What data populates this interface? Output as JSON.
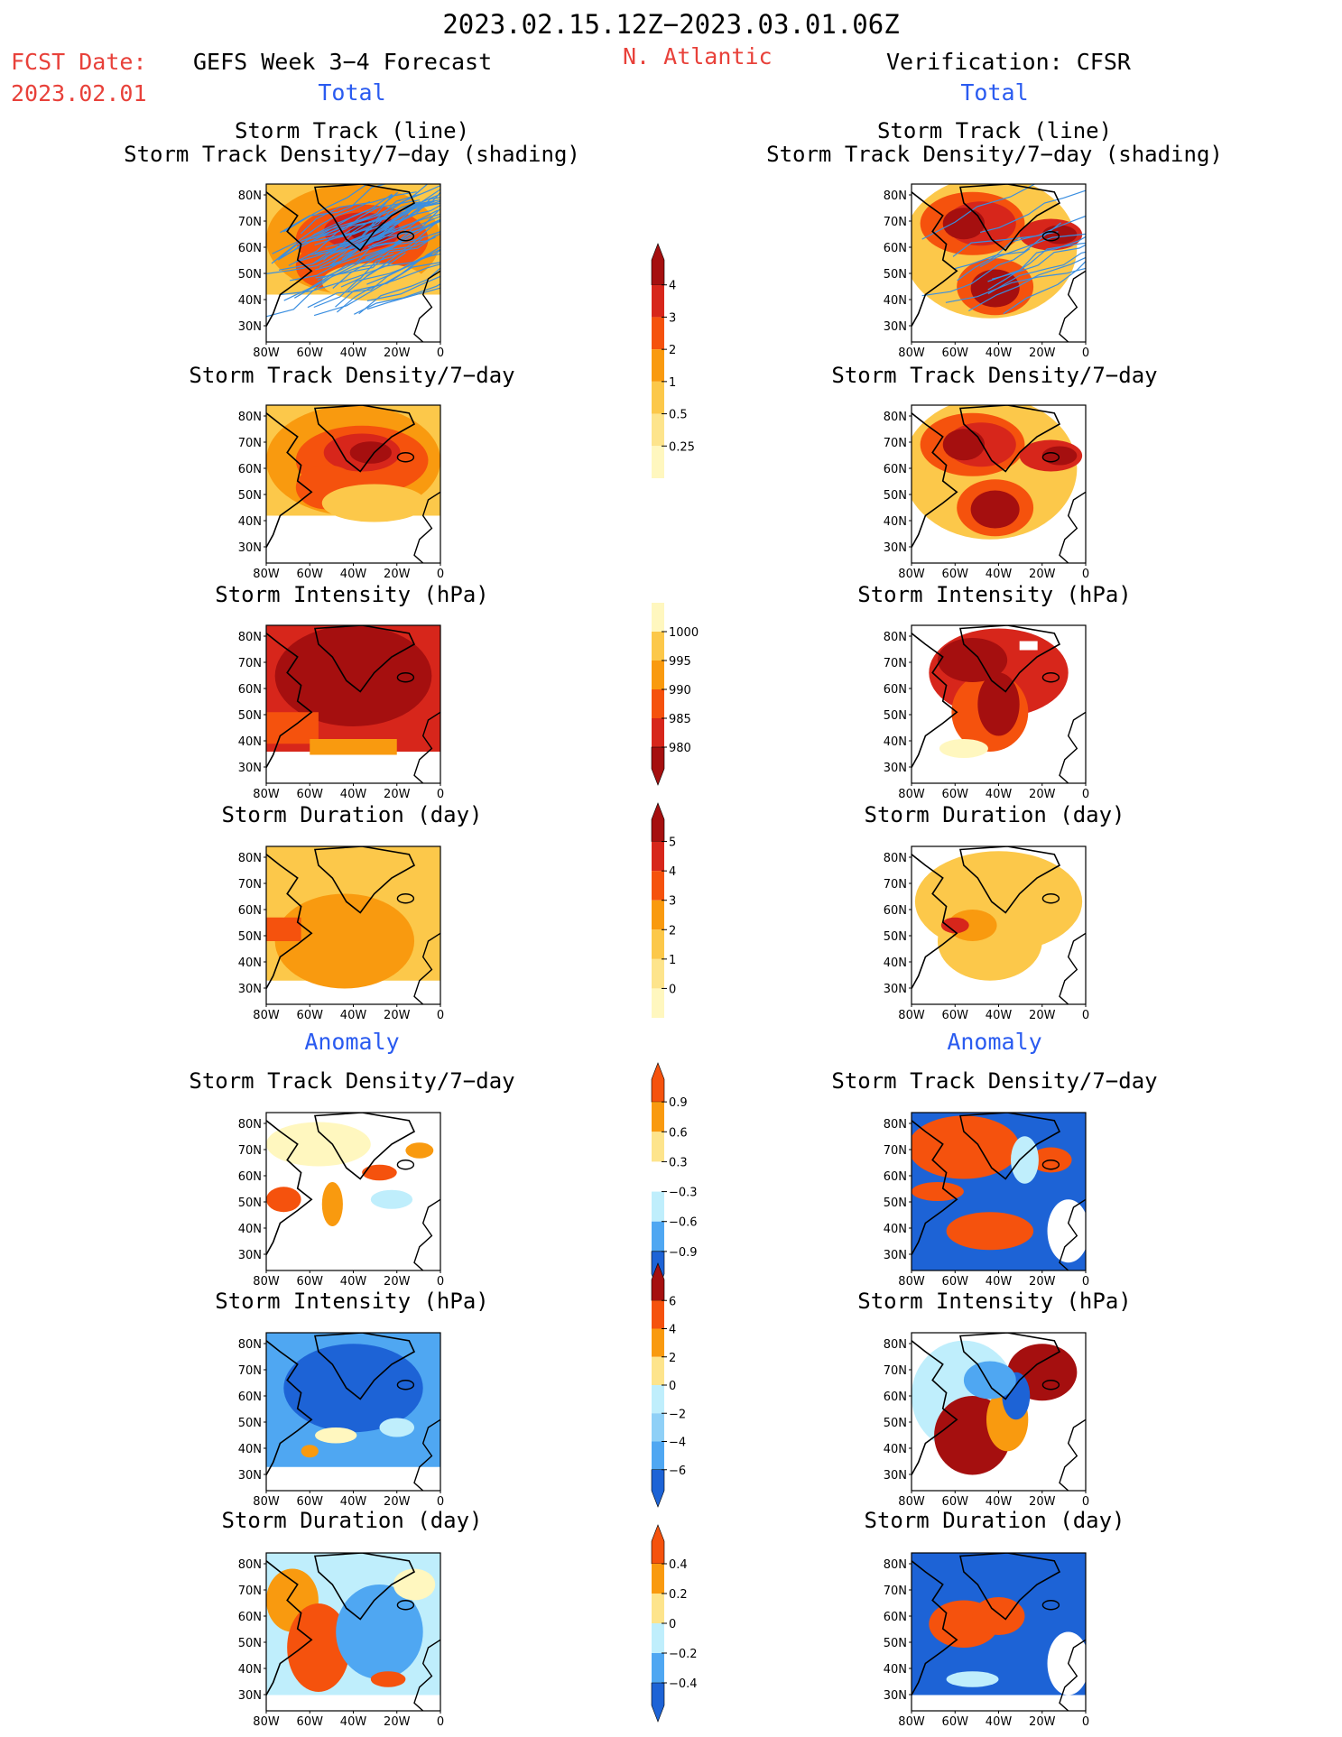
{
  "header": {
    "date_range": "2023.02.15.12Z−2023.03.01.06Z",
    "fcst_date_label": "FCST Date:",
    "fcst_date_value": "2023.02.01",
    "forecast_title": "GEFS Week 3−4 Forecast",
    "region": "N. Atlantic",
    "verification_title": "Verification: CFSR"
  },
  "sections": {
    "total": "Total",
    "anomaly": "Anomaly"
  },
  "panel_titles": {
    "storm_track_line": "Storm Track (line)",
    "storm_track_shading": "Storm Track Density/7−day (shading)",
    "density": "Storm Track Density/7−day",
    "intensity": "Storm Intensity (hPa)",
    "duration": "Storm Duration (day)"
  },
  "axes": {
    "lat_ticks": [
      "80N",
      "70N",
      "60N",
      "50N",
      "40N",
      "30N"
    ],
    "lon_ticks": [
      "80W",
      "60W",
      "40W",
      "20W",
      "0"
    ]
  },
  "colorbars": {
    "density_total": {
      "labels": [
        "4",
        "3",
        "2",
        "1",
        "0.5",
        "0.25"
      ],
      "colors": [
        "#a50f0f",
        "#d7261b",
        "#f5520d",
        "#f99a0f",
        "#fcc84a",
        "#fde48c",
        "#fff7bf"
      ]
    },
    "intensity_total": {
      "labels": [
        "1000",
        "995",
        "990",
        "985",
        "980"
      ],
      "colors": [
        "#fff7bf",
        "#fcc84a",
        "#f99a0f",
        "#f5520d",
        "#d7261b",
        "#a50f0f"
      ]
    },
    "duration_total": {
      "labels": [
        "5",
        "4",
        "3",
        "2",
        "1",
        "0"
      ],
      "colors": [
        "#a50f0f",
        "#d7261b",
        "#f5520d",
        "#f99a0f",
        "#fcc84a",
        "#fde48c",
        "#fff7bf"
      ]
    },
    "density_anom": {
      "labels": [
        "0.9",
        "0.6",
        "0.3",
        "−0.3",
        "−0.6",
        "−0.9"
      ],
      "colors": [
        "#f5520d",
        "#f99a0f",
        "#fde48c",
        "#ffffff",
        "#bfeefc",
        "#4fa7f2",
        "#1d63d6"
      ]
    },
    "intensity_anom": {
      "labels": [
        "6",
        "4",
        "2",
        "0",
        "−2",
        "−4",
        "−6"
      ],
      "colors": [
        "#a50f0f",
        "#f5520d",
        "#f99a0f",
        "#fde48c",
        "#bfeefc",
        "#8fd0f7",
        "#4fa7f2",
        "#1d63d6"
      ]
    },
    "duration_anom": {
      "labels": [
        "0.4",
        "0.2",
        "0",
        "−0.2",
        "−0.4"
      ],
      "colors": [
        "#f5520d",
        "#f99a0f",
        "#fde48c",
        "#bfeefc",
        "#4fa7f2",
        "#1d63d6"
      ]
    }
  },
  "palette": {
    "dark_red": "#a50f0f",
    "red": "#d7261b",
    "orange_red": "#f5520d",
    "orange": "#f99a0f",
    "light_orange": "#fcc84a",
    "pale_yellow": "#fff7bf",
    "light_blue": "#bfeefc",
    "blue": "#4fa7f2",
    "dark_blue": "#1d63d6",
    "track_line": "#3a8ee0"
  }
}
